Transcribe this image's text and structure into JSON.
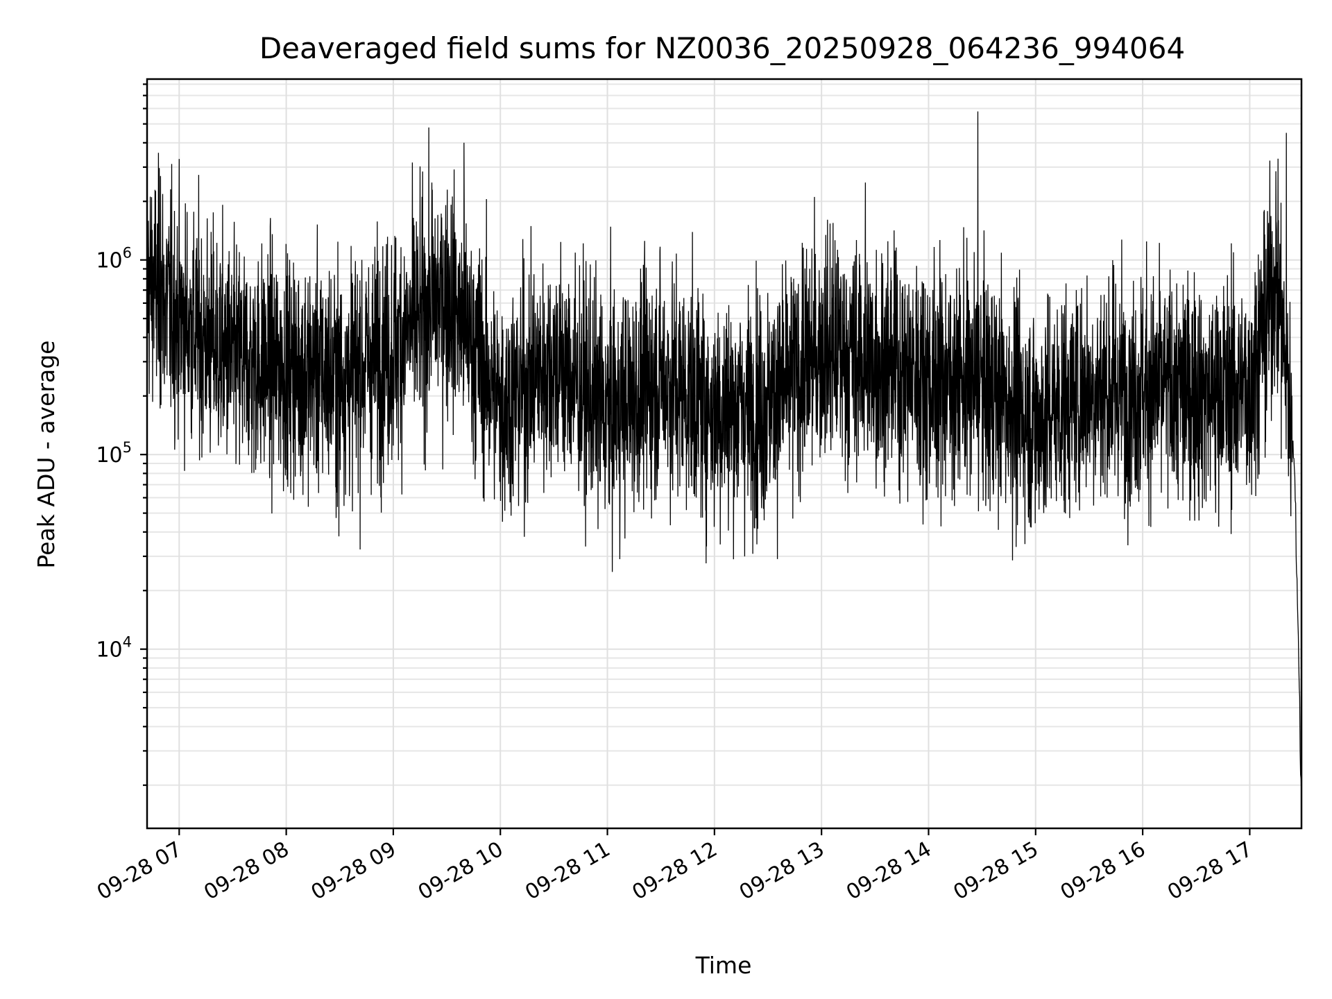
{
  "chart_data": {
    "type": "line",
    "title": "Deaveraged field sums for NZ0036_20250928_064236_994064",
    "xlabel": "Time",
    "ylabel": "Peak ADU - average",
    "yscale": "log",
    "ylim": [
      1200,
      8500000
    ],
    "xlim": [
      "2025-09-28 06:42",
      "2025-09-28 17:29"
    ],
    "grid": true,
    "x_ticks": [
      "09-28 07",
      "09-28 08",
      "09-28 09",
      "09-28 10",
      "09-28 11",
      "09-28 12",
      "09-28 13",
      "09-28 14",
      "09-28 15",
      "09-28 16",
      "09-28 17"
    ],
    "y_ticks": [
      {
        "base": "10",
        "exp": "4",
        "value": 10000
      },
      {
        "base": "10",
        "exp": "5",
        "value": 100000
      },
      {
        "base": "10",
        "exp": "6",
        "value": 1000000
      }
    ],
    "series": [
      {
        "color": "#000000",
        "x": [
          "2025-09-28 06:42",
          "2025-09-28 07:00",
          "2025-09-28 07:30",
          "2025-09-28 08:00",
          "2025-09-28 08:30",
          "2025-09-28 09:00",
          "2025-09-28 09:30",
          "2025-09-28 10:00",
          "2025-09-28 10:30",
          "2025-09-28 11:00",
          "2025-09-28 11:30",
          "2025-09-28 12:00",
          "2025-09-28 12:30",
          "2025-09-28 13:00",
          "2025-09-28 13:30",
          "2025-09-28 14:00",
          "2025-09-28 14:30",
          "2025-09-28 15:00",
          "2025-09-28 15:30",
          "2025-09-28 16:00",
          "2025-09-28 16:30",
          "2025-09-28 17:00",
          "2025-09-28 17:15",
          "2025-09-28 17:25",
          "2025-09-28 17:29"
        ],
        "y": [
          800000,
          500000,
          300000,
          280000,
          250000,
          350000,
          700000,
          180000,
          300000,
          160000,
          250000,
          170000,
          180000,
          350000,
          300000,
          250000,
          230000,
          150000,
          220000,
          220000,
          210000,
          220000,
          900000,
          100000,
          1700
        ]
      }
    ],
    "spikes": [
      {
        "x": "2025-09-28 14:28",
        "y": 5800000
      },
      {
        "x": "2025-09-28 17:21",
        "y": 4500000
      },
      {
        "x": "2025-09-28 09:40",
        "y": 4000000
      },
      {
        "x": "2025-09-28 06:50",
        "y": 2700000
      },
      {
        "x": "2025-09-28 09:22",
        "y": 2500000
      },
      {
        "x": "2025-09-28 13:25",
        "y": 2500000
      },
      {
        "x": "2025-09-28 08:30",
        "y": 38000
      }
    ]
  }
}
